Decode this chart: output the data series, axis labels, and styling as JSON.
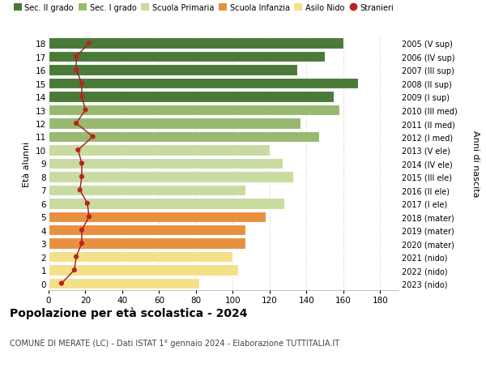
{
  "ages": [
    0,
    1,
    2,
    3,
    4,
    5,
    6,
    7,
    8,
    9,
    10,
    11,
    12,
    13,
    14,
    15,
    16,
    17,
    18
  ],
  "bar_values": [
    82,
    103,
    100,
    107,
    107,
    118,
    128,
    107,
    133,
    127,
    120,
    147,
    137,
    158,
    155,
    168,
    135,
    150,
    160
  ],
  "bar_colors": [
    "#f5e08a",
    "#f5e08a",
    "#f5e08a",
    "#e89040",
    "#e89040",
    "#e89040",
    "#c8dba0",
    "#c8dba0",
    "#c8dba0",
    "#c8dba0",
    "#c8dba0",
    "#98ba70",
    "#98ba70",
    "#98ba70",
    "#4a7a38",
    "#4a7a38",
    "#4a7a38",
    "#4a7a38",
    "#4a7a38"
  ],
  "stranieri_values": [
    7,
    14,
    15,
    18,
    18,
    22,
    21,
    17,
    18,
    18,
    16,
    24,
    15,
    20,
    18,
    18,
    15,
    15,
    22
  ],
  "right_labels": [
    "2023 (nido)",
    "2022 (nido)",
    "2021 (nido)",
    "2020 (mater)",
    "2019 (mater)",
    "2018 (mater)",
    "2017 (I ele)",
    "2016 (II ele)",
    "2015 (III ele)",
    "2014 (IV ele)",
    "2013 (V ele)",
    "2012 (I med)",
    "2011 (II med)",
    "2010 (III med)",
    "2009 (I sup)",
    "2008 (II sup)",
    "2007 (III sup)",
    "2006 (IV sup)",
    "2005 (V sup)"
  ],
  "legend_labels": [
    "Sec. II grado",
    "Sec. I grado",
    "Scuola Primaria",
    "Scuola Infanzia",
    "Asilo Nido",
    "Stranieri"
  ],
  "legend_colors": [
    "#4a7a38",
    "#98ba70",
    "#c8dba0",
    "#e89040",
    "#f5e08a",
    "#aa2020"
  ],
  "title": "Popolazione per età scolastica - 2024",
  "subtitle": "COMUNE DI MERATE (LC) - Dati ISTAT 1° gennaio 2024 - Elaborazione TUTTITALIA.IT",
  "ylabel_left": "Età alunni",
  "ylabel_right": "Anni di nascita",
  "xlim": [
    0,
    190
  ],
  "xticks": [
    0,
    20,
    40,
    60,
    80,
    100,
    120,
    140,
    160,
    180
  ],
  "background_color": "#ffffff",
  "grid_color": "#cccccc"
}
